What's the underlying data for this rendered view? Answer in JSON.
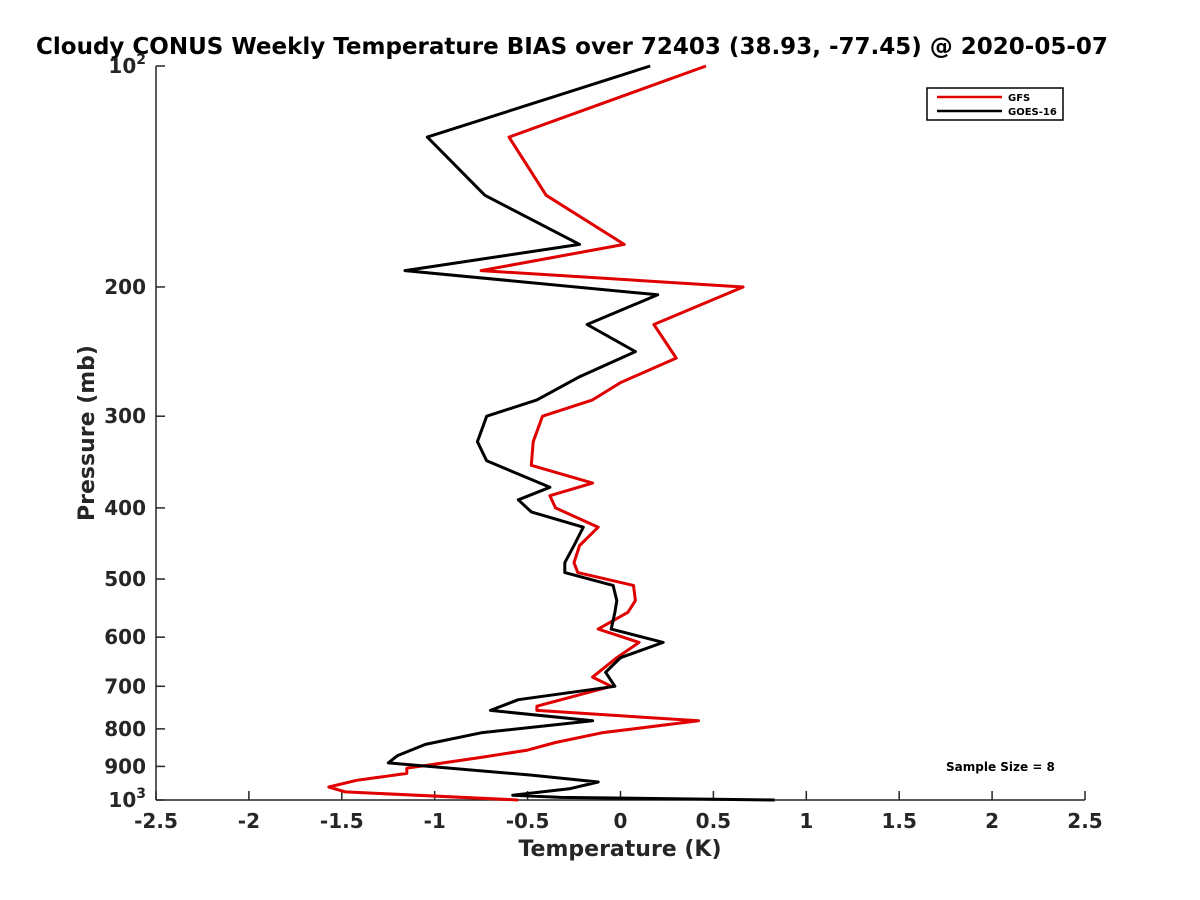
{
  "chart_data": {
    "type": "line",
    "title": "Cloudy CONUS Weekly Temperature BIAS over 72403 (38.93, -77.45) @ 2020-05-07",
    "xlabel": "Temperature (K)",
    "ylabel": "Pressure (mb)",
    "xlim": [
      -2.5,
      2.5
    ],
    "ylim": [
      1000,
      100
    ],
    "y_scale": "log",
    "y_reversed": true,
    "grid": false,
    "legend_position": "top-right",
    "x_ticks": [
      "-2.5",
      "-2",
      "-1.5",
      "-1",
      "-0.5",
      "0",
      "0.5",
      "1",
      "1.5",
      "2",
      "2.5"
    ],
    "x_tick_values": [
      -2.5,
      -2,
      -1.5,
      -1,
      -0.5,
      0,
      0.5,
      1,
      1.5,
      2,
      2.5
    ],
    "y_ticks": [
      {
        "value": 100,
        "base": "10",
        "exp": "2"
      },
      {
        "value": 200,
        "label": "200"
      },
      {
        "value": 300,
        "label": "300"
      },
      {
        "value": 400,
        "label": "400"
      },
      {
        "value": 500,
        "label": "500"
      },
      {
        "value": 600,
        "label": "600"
      },
      {
        "value": 700,
        "label": "700"
      },
      {
        "value": 800,
        "label": "800"
      },
      {
        "value": 900,
        "label": "900"
      },
      {
        "value": 1000,
        "base": "10",
        "exp": "3"
      }
    ],
    "series": [
      {
        "name": "GFS",
        "color": "#e00000",
        "points": [
          [
            0.46,
            100
          ],
          [
            -0.6,
            125
          ],
          [
            -0.4,
            150
          ],
          [
            0.02,
            175
          ],
          [
            -0.75,
            190
          ],
          [
            0.66,
            200
          ],
          [
            0.18,
            225
          ],
          [
            0.3,
            250
          ],
          [
            0.0,
            270
          ],
          [
            -0.15,
            285
          ],
          [
            -0.42,
            300
          ],
          [
            -0.47,
            325
          ],
          [
            -0.48,
            350
          ],
          [
            -0.15,
            370
          ],
          [
            -0.38,
            385
          ],
          [
            -0.35,
            400
          ],
          [
            -0.12,
            425
          ],
          [
            -0.22,
            450
          ],
          [
            -0.25,
            475
          ],
          [
            -0.23,
            490
          ],
          [
            0.07,
            510
          ],
          [
            0.08,
            535
          ],
          [
            0.04,
            555
          ],
          [
            -0.12,
            585
          ],
          [
            0.1,
            610
          ],
          [
            -0.02,
            640
          ],
          [
            -0.15,
            680
          ],
          [
            -0.05,
            700
          ],
          [
            -0.45,
            745
          ],
          [
            -0.45,
            755
          ],
          [
            0.42,
            780
          ],
          [
            -0.1,
            810
          ],
          [
            -0.35,
            835
          ],
          [
            -0.5,
            855
          ],
          [
            -0.75,
            875
          ],
          [
            -1.15,
            905
          ],
          [
            -1.15,
            920
          ],
          [
            -1.42,
            940
          ],
          [
            -1.57,
            960
          ],
          [
            -1.48,
            975
          ],
          [
            -0.55,
            1000
          ]
        ]
      },
      {
        "name": "GOES-16",
        "color": "#000000",
        "points": [
          [
            0.16,
            100
          ],
          [
            -1.04,
            125
          ],
          [
            -0.73,
            150
          ],
          [
            -0.22,
            175
          ],
          [
            -1.16,
            190
          ],
          [
            0.2,
            205
          ],
          [
            -0.18,
            225
          ],
          [
            0.08,
            245
          ],
          [
            -0.22,
            265
          ],
          [
            -0.45,
            285
          ],
          [
            -0.72,
            300
          ],
          [
            -0.77,
            325
          ],
          [
            -0.72,
            345
          ],
          [
            -0.38,
            375
          ],
          [
            -0.55,
            390
          ],
          [
            -0.48,
            405
          ],
          [
            -0.2,
            425
          ],
          [
            -0.25,
            450
          ],
          [
            -0.3,
            475
          ],
          [
            -0.3,
            490
          ],
          [
            -0.04,
            510
          ],
          [
            -0.02,
            535
          ],
          [
            -0.03,
            555
          ],
          [
            -0.05,
            585
          ],
          [
            0.23,
            610
          ],
          [
            0.0,
            640
          ],
          [
            -0.08,
            670
          ],
          [
            -0.03,
            700
          ],
          [
            -0.55,
            730
          ],
          [
            -0.7,
            755
          ],
          [
            -0.15,
            780
          ],
          [
            -0.75,
            810
          ],
          [
            -1.05,
            840
          ],
          [
            -1.2,
            870
          ],
          [
            -1.25,
            890
          ],
          [
            -0.48,
            925
          ],
          [
            -0.12,
            945
          ],
          [
            -0.27,
            965
          ],
          [
            -0.58,
            985
          ],
          [
            -0.32,
            992
          ],
          [
            0.83,
            1000
          ]
        ]
      }
    ],
    "annotation": "Sample Size = 8"
  }
}
